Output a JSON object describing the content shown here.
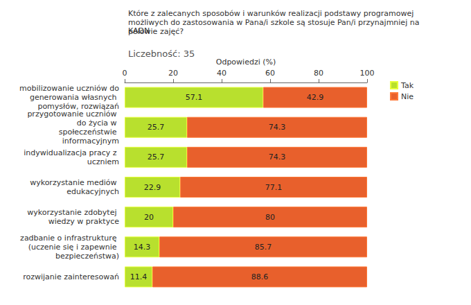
{
  "chart_data": {
    "type": "bar",
    "title": "Które z zalecanych sposobów i warunków realizacji podstawy programowej możliwych do zastosowania w Pana/i szkole są stosuje Pan/i przynajmniej na połowie zajęć?",
    "subtitle": "KADN",
    "annotations": [
      "Liczebność: 35"
    ],
    "x_label": "Odpowiedzi (%)",
    "orientation": "horizontal",
    "stacked": true,
    "data_labels": true,
    "grid": false,
    "legend": "top-right",
    "categories": [
      "mobilizowanie uczniów do generowania własnych pomysłów, rozwiązań",
      "przygotowanie uczniów do życia w społeczeństwie informacyjnym",
      "indywidualizacja pracy z uczniem",
      "wykorzystanie mediów edukacyjnych",
      "wykorzystanie zdobytej wiedzy w praktyce",
      "zadbanie o infrastrukturę (uczenie się i zapewnie bezpieczeństwa)",
      "rozwijanie zainteresowań"
    ],
    "series": [
      {
        "name": "Tak",
        "color": "#b8e02e",
        "values": [
          57.1,
          25.7,
          25.7,
          22.9,
          20,
          14.3,
          11.4
        ]
      },
      {
        "name": "Nie",
        "color": "#e8602c",
        "values": [
          42.9,
          74.3,
          74.3,
          77.1,
          80,
          85.7,
          88.6
        ]
      }
    ],
    "xlim": [
      0,
      100
    ],
    "xticks": [
      0,
      20,
      40,
      60,
      80,
      100
    ]
  }
}
